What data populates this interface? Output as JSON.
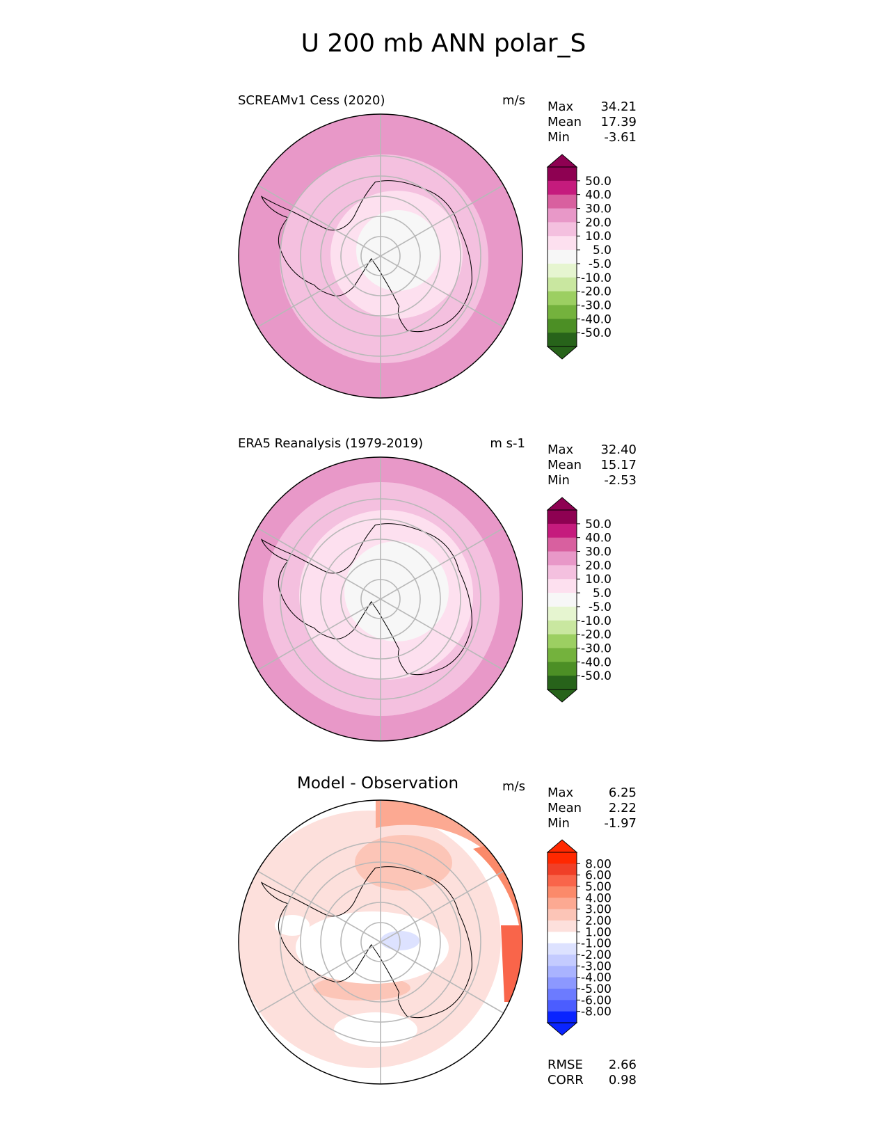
{
  "title": "U 200 mb ANN polar_S",
  "colors": {
    "pink_scale": [
      "#f7f7f7",
      "#fde0ef",
      "#f4c0df",
      "#e898c8",
      "#d8609f",
      "#c51b7d",
      "#8e0152"
    ],
    "green_scale": [
      "#e6f5d0",
      "#c9e7a0",
      "#9ccf62",
      "#74b23d",
      "#4c8f25",
      "#27631a"
    ],
    "red_scale": [
      "#fde0dc",
      "#fcc5b7",
      "#fca992",
      "#fb8a6a",
      "#f9654a",
      "#f03f27",
      "#ff2800"
    ],
    "blue_scale": [
      "#dde2ff",
      "#c4cbff",
      "#a9b3ff",
      "#8c98ff",
      "#6c7bff",
      "#4b5dff",
      "#2a3fff",
      "#0a24ff"
    ],
    "land_line": "#000000",
    "grid": "#b8b8b8"
  },
  "panels": [
    {
      "title": "SCREAMv1 Cess (2020)",
      "units": "m/s",
      "stats": [
        {
          "label": "Max",
          "value": "34.21"
        },
        {
          "label": "Mean",
          "value": "17.39"
        },
        {
          "label": "Min",
          "value": "-3.61"
        }
      ],
      "colorbar_ticks": [
        "50.0",
        "40.0",
        "30.0",
        "20.0",
        "10.0",
        "5.0",
        "-5.0",
        "-10.0",
        "-20.0",
        "-30.0",
        "-40.0",
        "-50.0"
      ]
    },
    {
      "title": "ERA5 Reanalysis (1979-2019)",
      "units": "m s-1",
      "stats": [
        {
          "label": "Max",
          "value": "32.40"
        },
        {
          "label": "Mean",
          "value": "15.17"
        },
        {
          "label": "Min",
          "value": "-2.53"
        }
      ],
      "colorbar_ticks": [
        "50.0",
        "40.0",
        "30.0",
        "20.0",
        "10.0",
        "5.0",
        "-5.0",
        "-10.0",
        "-20.0",
        "-30.0",
        "-40.0",
        "-50.0"
      ]
    },
    {
      "title": "Model - Observation",
      "units": "m/s",
      "stats": [
        {
          "label": "Max",
          "value": "6.25"
        },
        {
          "label": "Mean",
          "value": "2.22"
        },
        {
          "label": "Min",
          "value": "-1.97"
        }
      ],
      "colorbar_ticks": [
        "8.00",
        "6.00",
        "5.00",
        "4.00",
        "3.00",
        "2.00",
        "1.00",
        "-1.00",
        "-2.00",
        "-3.00",
        "-4.00",
        "-5.00",
        "-6.00",
        "-8.00"
      ],
      "extra_stats": [
        {
          "label": "RMSE",
          "value": "2.66"
        },
        {
          "label": "CORR",
          "value": "0.98"
        }
      ]
    }
  ],
  "chart_data": [
    {
      "type": "heatmap",
      "projection": "south-polar-stereographic",
      "title": "SCREAMv1 Cess (2020)",
      "variable": "U 200 mb ANN",
      "units": "m/s",
      "levels": [
        -50,
        -40,
        -30,
        -20,
        -10,
        -5,
        5,
        10,
        20,
        30,
        40,
        50
      ],
      "max": 34.21,
      "mean": 17.39,
      "min": -3.61
    },
    {
      "type": "heatmap",
      "projection": "south-polar-stereographic",
      "title": "ERA5 Reanalysis (1979-2019)",
      "variable": "U 200 mb ANN",
      "units": "m s-1",
      "levels": [
        -50,
        -40,
        -30,
        -20,
        -10,
        -5,
        5,
        10,
        20,
        30,
        40,
        50
      ],
      "max": 32.4,
      "mean": 15.17,
      "min": -2.53
    },
    {
      "type": "heatmap",
      "projection": "south-polar-stereographic",
      "title": "Model - Observation",
      "units": "m/s",
      "levels": [
        -8,
        -6,
        -5,
        -4,
        -3,
        -2,
        -1,
        1,
        2,
        3,
        4,
        5,
        6,
        8
      ],
      "max": 6.25,
      "mean": 2.22,
      "min": -1.97,
      "rmse": 2.66,
      "corr": 0.98
    }
  ]
}
